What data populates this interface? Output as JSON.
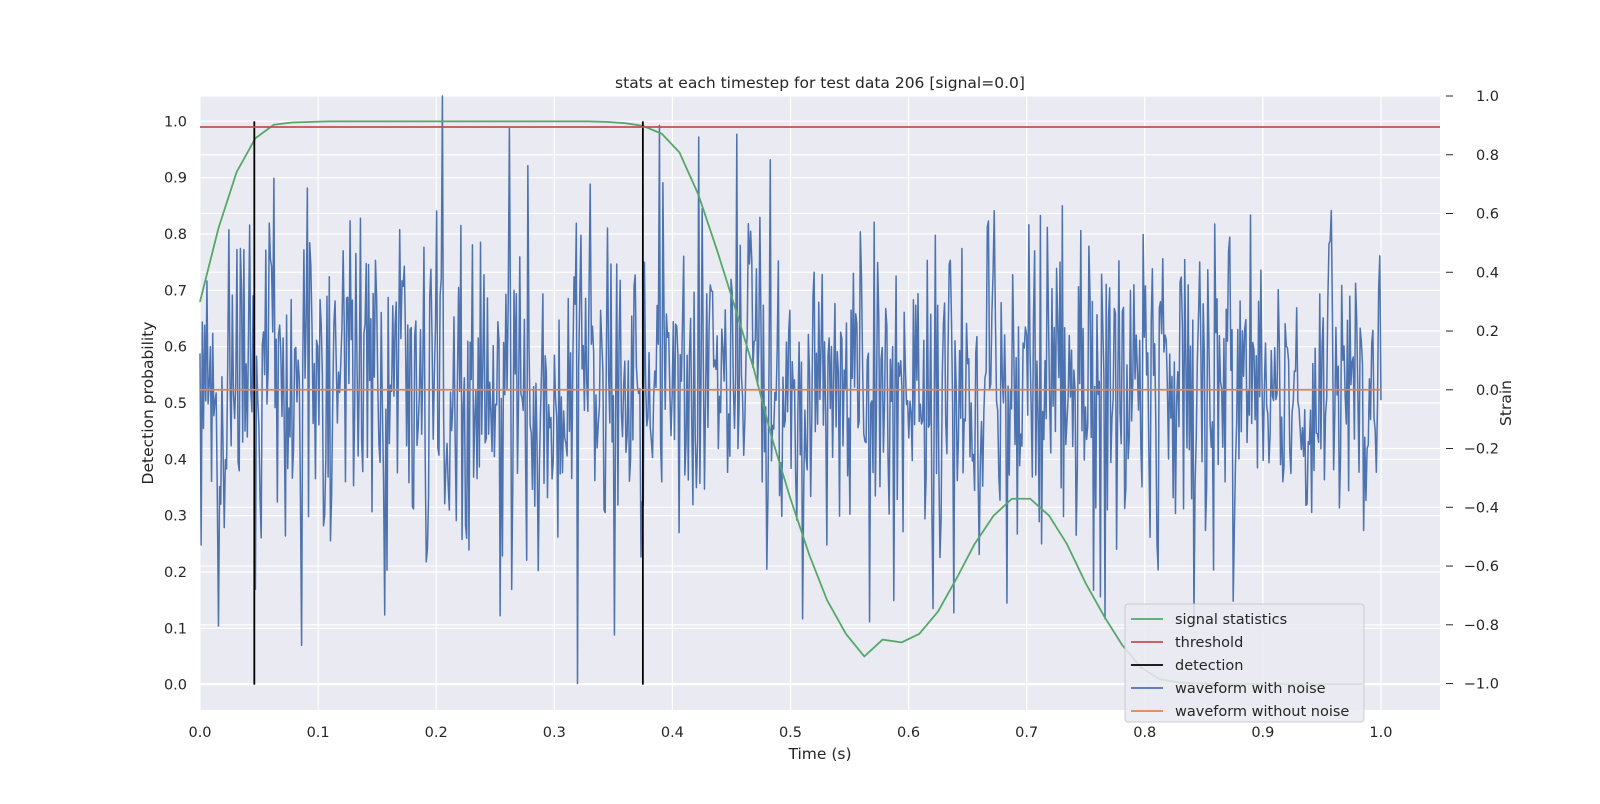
{
  "chart_data": {
    "type": "line",
    "title": "stats at each timestep for test data 206 [signal=0.0]",
    "xlabel": "Time (s)",
    "ylabel": "Detection probability",
    "y2label": "Strain",
    "xlim": [
      0.0,
      1.05
    ],
    "ylim": [
      -0.045,
      1.045
    ],
    "y2lim": [
      -1.09,
      1.0
    ],
    "grid": true,
    "legend_position": "lower-right",
    "xticks": [
      "0.0",
      "0.1",
      "0.2",
      "0.3",
      "0.4",
      "0.5",
      "0.6",
      "0.7",
      "0.8",
      "0.9",
      "1.0"
    ],
    "yticks": [
      "0.0",
      "0.1",
      "0.2",
      "0.3",
      "0.4",
      "0.5",
      "0.6",
      "0.7",
      "0.8",
      "0.9",
      "1.0"
    ],
    "y2ticks": [
      "−1.0",
      "−0.8",
      "−0.6",
      "−0.4",
      "−0.2",
      "0.0",
      "0.2",
      "0.4",
      "0.6",
      "0.8",
      "1.0"
    ],
    "legend": [
      {
        "label": "signal statistics",
        "color": "#55a868"
      },
      {
        "label": "threshold",
        "color": "#c44e52"
      },
      {
        "label": "detection",
        "color": "#000000"
      },
      {
        "label": "waveform with noise",
        "color": "#4c72b0"
      },
      {
        "label": "waveform without noise",
        "color": "#dd8452"
      }
    ],
    "signal_statistics": {
      "x": [
        0.0,
        0.0156,
        0.031,
        0.0469,
        0.0625,
        0.078,
        0.094,
        0.109,
        0.125,
        0.141,
        0.156,
        0.172,
        0.188,
        0.203,
        0.219,
        0.234,
        0.25,
        0.266,
        0.281,
        0.297,
        0.313,
        0.328,
        0.344,
        0.359,
        0.375,
        0.391,
        0.406,
        0.422,
        0.438,
        0.453,
        0.469,
        0.484,
        0.5,
        0.516,
        0.531,
        0.547,
        0.5625,
        0.578,
        0.594,
        0.609,
        0.625,
        0.641,
        0.656,
        0.672,
        0.6875,
        0.703,
        0.719,
        0.734,
        0.75,
        0.766,
        0.781,
        0.797,
        0.8125,
        0.828,
        0.844,
        0.859,
        0.875,
        0.891,
        0.906,
        0.922,
        0.938,
        0.953,
        0.969,
        0.984
      ],
      "y": [
        0.68,
        0.81,
        0.91,
        0.97,
        0.994,
        0.998,
        0.999,
        1.0,
        1.0,
        1.0,
        1.0,
        1.0,
        1.0,
        1.0,
        1.0,
        1.0,
        1.0,
        1.0,
        1.0,
        1.0,
        1.0,
        1.0,
        0.999,
        0.997,
        0.992,
        0.978,
        0.945,
        0.87,
        0.77,
        0.67,
        0.56,
        0.44,
        0.33,
        0.23,
        0.15,
        0.09,
        0.05,
        0.08,
        0.075,
        0.09,
        0.13,
        0.19,
        0.25,
        0.3,
        0.33,
        0.33,
        0.3,
        0.25,
        0.18,
        0.12,
        0.07,
        0.03,
        0.01,
        0.004,
        0.002,
        0.001,
        0.001,
        0.001,
        0.001,
        0.001,
        0.001,
        0.001,
        0.001,
        0.001
      ]
    },
    "threshold": 0.99,
    "detections": [
      0.046,
      0.375
    ],
    "detection_range": [
      0.0,
      1.0
    ],
    "waveform_without_noise": 0.0,
    "waveform_with_noise": {
      "x_range": [
        0.0,
        1.0
      ],
      "points": 1024,
      "amplitude_std": 0.28,
      "range": [
        -1.0,
        1.0
      ],
      "spikes": [
        [
          0.0625,
          0.72
        ],
        [
          0.086,
          -0.87
        ],
        [
          0.2055,
          1.0
        ],
        [
          0.262,
          0.89
        ],
        [
          0.32,
          -1.0
        ],
        [
          0.33,
          0.7
        ],
        [
          0.455,
          0.87
        ],
        [
          0.047,
          -0.68
        ],
        [
          0.51,
          -0.78
        ],
        [
          0.567,
          -0.79
        ],
        [
          0.766,
          -0.78
        ],
        [
          0.875,
          -0.72
        ]
      ]
    }
  }
}
